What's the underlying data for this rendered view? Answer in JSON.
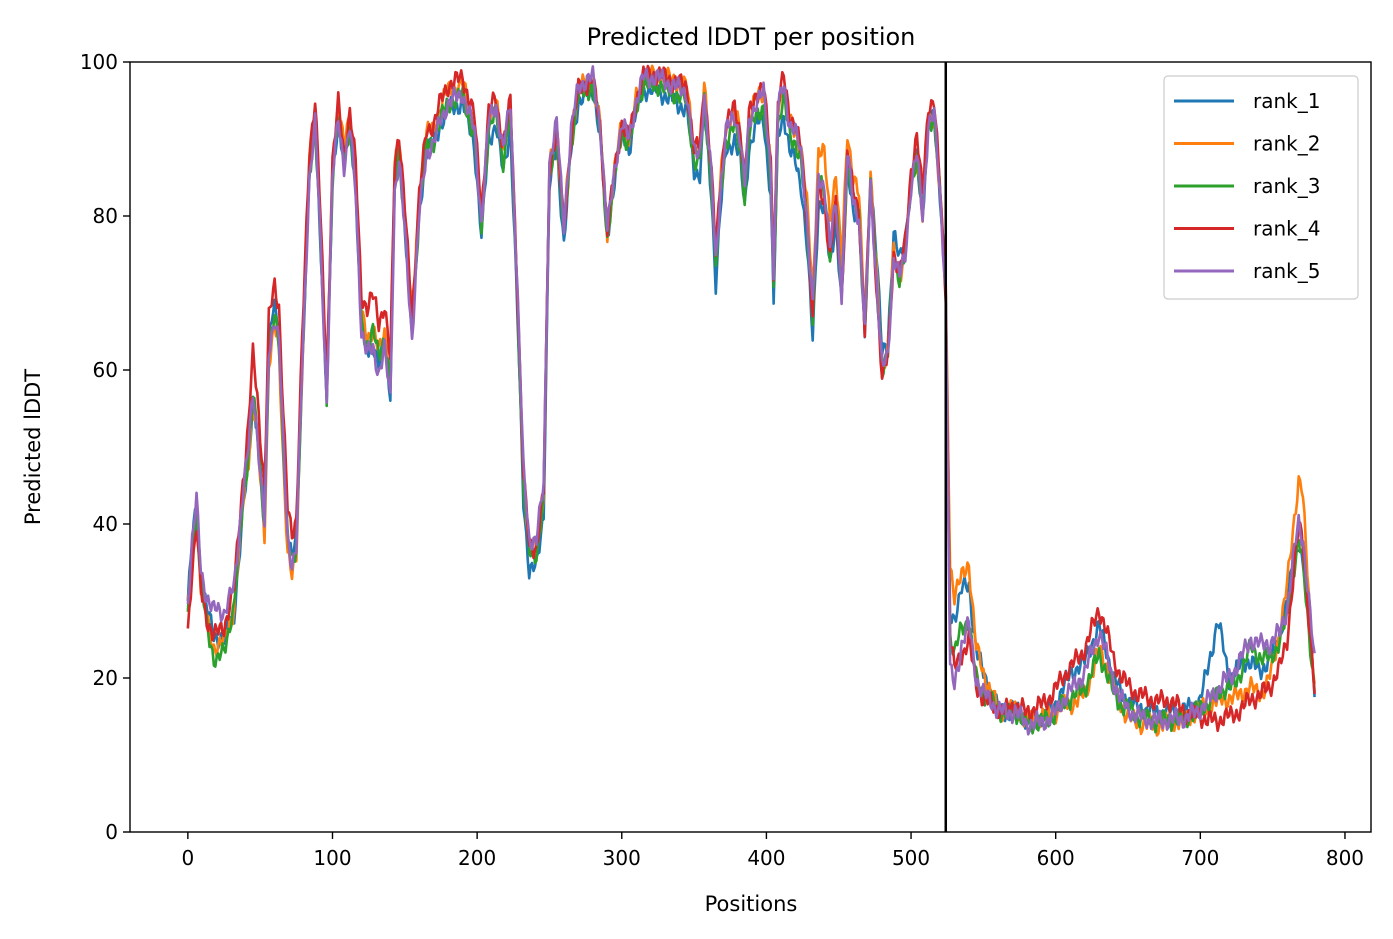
{
  "chart_data": {
    "type": "line",
    "title": "Predicted lDDT per position",
    "xlabel": "Positions",
    "ylabel": "Predicted lDDT",
    "xlim": [
      -40,
      818
    ],
    "ylim": [
      0,
      100
    ],
    "xticks": [
      0,
      100,
      200,
      300,
      400,
      500,
      600,
      700,
      800
    ],
    "yticks": [
      0,
      20,
      40,
      60,
      80,
      100
    ],
    "grid": false,
    "legend_position": "top-right",
    "vline": {
      "x": 524,
      "color": "#000000"
    },
    "series": [
      {
        "name": "rank_1",
        "color": "#1f77b4",
        "offsets": [
          [
            0,
            0
          ],
          [
            37,
            -3
          ],
          [
            58,
            3
          ],
          [
            60,
            1
          ],
          [
            97,
            0
          ],
          [
            150,
            -1
          ],
          [
            236,
            -4
          ],
          [
            290,
            -1
          ],
          [
            430,
            -4
          ],
          [
            470,
            0
          ],
          [
            476,
            3
          ],
          [
            486,
            2
          ],
          [
            495,
            3
          ],
          [
            500,
            0
          ],
          [
            524,
            0
          ],
          [
            530,
            6
          ],
          [
            540,
            5
          ],
          [
            560,
            0
          ],
          [
            600,
            0
          ],
          [
            610,
            1.5
          ],
          [
            625,
            1
          ],
          [
            640,
            0
          ],
          [
            700,
            1
          ],
          [
            712,
            10
          ],
          [
            720,
            2
          ],
          [
            730,
            3
          ],
          [
            740,
            1
          ],
          [
            760,
            2
          ],
          [
            770,
            -3
          ],
          [
            779,
            -3
          ]
        ]
      },
      {
        "name": "rank_2",
        "color": "#ff7f0e",
        "offsets": [
          [
            0,
            -1
          ],
          [
            18,
            -3
          ],
          [
            30,
            -2
          ],
          [
            50,
            -1
          ],
          [
            72,
            -2
          ],
          [
            85,
            2
          ],
          [
            200,
            0
          ],
          [
            236,
            -1
          ],
          [
            360,
            1
          ],
          [
            420,
            0
          ],
          [
            440,
            4
          ],
          [
            460,
            3
          ],
          [
            475,
            1
          ],
          [
            500,
            0
          ],
          [
            524,
            0
          ],
          [
            527,
            10
          ],
          [
            535,
            7
          ],
          [
            540,
            8
          ],
          [
            545,
            4
          ],
          [
            560,
            0
          ],
          [
            590,
            0
          ],
          [
            600,
            -1
          ],
          [
            615,
            -3
          ],
          [
            625,
            -3
          ],
          [
            640,
            -1
          ],
          [
            650,
            -2
          ],
          [
            700,
            0
          ],
          [
            730,
            -1
          ],
          [
            745,
            -2
          ],
          [
            760,
            4
          ],
          [
            770,
            6
          ],
          [
            779,
            -3
          ]
        ]
      },
      {
        "name": "rank_3",
        "color": "#2ca02c",
        "offsets": [
          [
            0,
            -1
          ],
          [
            10,
            -2
          ],
          [
            20,
            -5
          ],
          [
            30,
            -2
          ],
          [
            50,
            0
          ],
          [
            97,
            0
          ],
          [
            120,
            0
          ],
          [
            130,
            1
          ],
          [
            150,
            -1
          ],
          [
            236,
            -2
          ],
          [
            290,
            -1
          ],
          [
            365,
            -1
          ],
          [
            405,
            -2
          ],
          [
            430,
            -1
          ],
          [
            470,
            0
          ],
          [
            500,
            0
          ],
          [
            524,
            0
          ],
          [
            530,
            1
          ],
          [
            545,
            0
          ],
          [
            560,
            0
          ],
          [
            600,
            -1
          ],
          [
            630,
            -3
          ],
          [
            650,
            -1
          ],
          [
            700,
            0
          ],
          [
            725,
            1
          ],
          [
            735,
            4
          ],
          [
            745,
            2
          ],
          [
            760,
            0
          ],
          [
            770,
            -3
          ],
          [
            779,
            -4
          ]
        ]
      },
      {
        "name": "rank_4",
        "color": "#d62728",
        "offsets": [
          [
            0,
            -4
          ],
          [
            15,
            -2
          ],
          [
            40,
            2
          ],
          [
            45,
            5
          ],
          [
            95,
            3
          ],
          [
            100,
            2
          ],
          [
            110,
            1
          ],
          [
            120,
            4
          ],
          [
            130,
            6
          ],
          [
            140,
            3
          ],
          [
            150,
            1
          ],
          [
            200,
            1
          ],
          [
            240,
            -1
          ],
          [
            300,
            0
          ],
          [
            360,
            1
          ],
          [
            420,
            1
          ],
          [
            440,
            -2
          ],
          [
            460,
            1
          ],
          [
            480,
            -1
          ],
          [
            500,
            2
          ],
          [
            510,
            3
          ],
          [
            524,
            0
          ],
          [
            528,
            0
          ],
          [
            535,
            -3
          ],
          [
            545,
            -1
          ],
          [
            560,
            0
          ],
          [
            600,
            2
          ],
          [
            630,
            3
          ],
          [
            650,
            2
          ],
          [
            680,
            2
          ],
          [
            700,
            -1
          ],
          [
            712,
            -3
          ],
          [
            730,
            -3
          ],
          [
            745,
            -2
          ],
          [
            760,
            -3
          ],
          [
            770,
            0
          ],
          [
            779,
            -4
          ]
        ]
      },
      {
        "name": "rank_5",
        "color": "#9467bd",
        "offsets": [
          [
            0,
            0
          ],
          [
            10,
            0
          ],
          [
            20,
            2
          ],
          [
            40,
            0
          ],
          [
            97,
            0
          ],
          [
            150,
            -2
          ],
          [
            236,
            0
          ],
          [
            524,
            0
          ],
          [
            527,
            -4
          ],
          [
            540,
            0
          ],
          [
            560,
            0
          ],
          [
            600,
            -1
          ],
          [
            630,
            0
          ],
          [
            650,
            -1
          ],
          [
            700,
            0
          ],
          [
            710,
            1
          ],
          [
            720,
            2
          ],
          [
            735,
            5
          ],
          [
            745,
            4
          ],
          [
            760,
            1
          ],
          [
            770,
            0
          ],
          [
            779,
            0
          ]
        ]
      }
    ],
    "base_profile": [
      [
        0,
        30
      ],
      [
        3,
        38
      ],
      [
        6,
        43
      ],
      [
        9,
        34
      ],
      [
        13,
        30
      ],
      [
        18,
        27
      ],
      [
        25,
        27
      ],
      [
        32,
        31
      ],
      [
        38,
        44
      ],
      [
        42,
        50
      ],
      [
        45,
        57
      ],
      [
        48,
        52
      ],
      [
        50,
        47
      ],
      [
        53,
        40
      ],
      [
        56,
        62
      ],
      [
        60,
        67
      ],
      [
        63,
        64
      ],
      [
        66,
        50
      ],
      [
        69,
        38
      ],
      [
        72,
        35
      ],
      [
        75,
        37
      ],
      [
        79,
        60
      ],
      [
        84,
        85
      ],
      [
        88,
        92
      ],
      [
        91,
        80
      ],
      [
        96,
        56
      ],
      [
        100,
        85
      ],
      [
        104,
        93
      ],
      [
        108,
        87
      ],
      [
        112,
        92
      ],
      [
        116,
        84
      ],
      [
        120,
        66
      ],
      [
        124,
        63
      ],
      [
        128,
        64
      ],
      [
        132,
        61
      ],
      [
        136,
        64
      ],
      [
        140,
        58
      ],
      [
        143,
        85
      ],
      [
        146,
        89
      ],
      [
        150,
        80
      ],
      [
        155,
        66
      ],
      [
        160,
        82
      ],
      [
        165,
        90
      ],
      [
        170,
        91
      ],
      [
        175,
        94
      ],
      [
        180,
        96
      ],
      [
        190,
        97
      ],
      [
        198,
        92
      ],
      [
        203,
        80
      ],
      [
        208,
        93
      ],
      [
        213,
        95
      ],
      [
        218,
        89
      ],
      [
        223,
        95
      ],
      [
        228,
        70
      ],
      [
        232,
        47
      ],
      [
        236,
        38
      ],
      [
        241,
        38
      ],
      [
        246,
        45
      ],
      [
        250,
        87
      ],
      [
        255,
        92
      ],
      [
        260,
        79
      ],
      [
        265,
        91
      ],
      [
        270,
        97
      ],
      [
        280,
        98
      ],
      [
        285,
        92
      ],
      [
        290,
        78
      ],
      [
        295,
        86
      ],
      [
        300,
        92
      ],
      [
        305,
        90
      ],
      [
        310,
        95
      ],
      [
        315,
        98
      ],
      [
        325,
        98
      ],
      [
        335,
        97
      ],
      [
        345,
        96
      ],
      [
        350,
        88
      ],
      [
        354,
        88
      ],
      [
        357,
        96
      ],
      [
        362,
        85
      ],
      [
        365,
        74
      ],
      [
        368,
        83
      ],
      [
        372,
        91
      ],
      [
        378,
        93
      ],
      [
        382,
        90
      ],
      [
        385,
        84
      ],
      [
        388,
        92
      ],
      [
        393,
        95
      ],
      [
        398,
        96
      ],
      [
        403,
        86
      ],
      [
        405,
        72
      ],
      [
        408,
        94
      ],
      [
        412,
        97
      ],
      [
        416,
        92
      ],
      [
        420,
        91
      ],
      [
        424,
        88
      ],
      [
        428,
        80
      ],
      [
        432,
        68
      ],
      [
        436,
        85
      ],
      [
        440,
        84
      ],
      [
        444,
        76
      ],
      [
        448,
        82
      ],
      [
        452,
        70
      ],
      [
        456,
        88
      ],
      [
        460,
        82
      ],
      [
        464,
        80
      ],
      [
        468,
        65
      ],
      [
        472,
        84
      ],
      [
        476,
        72
      ],
      [
        480,
        60
      ],
      [
        484,
        62
      ],
      [
        488,
        75
      ],
      [
        492,
        72
      ],
      [
        496,
        75
      ],
      [
        500,
        84
      ],
      [
        504,
        88
      ],
      [
        508,
        80
      ],
      [
        512,
        92
      ],
      [
        516,
        93
      ],
      [
        520,
        83
      ],
      [
        524,
        70
      ],
      [
        527,
        25
      ],
      [
        530,
        22
      ],
      [
        535,
        26
      ],
      [
        540,
        27
      ],
      [
        545,
        20
      ],
      [
        550,
        18
      ],
      [
        555,
        17
      ],
      [
        560,
        16
      ],
      [
        566,
        15.5
      ],
      [
        572,
        16
      ],
      [
        580,
        14.5
      ],
      [
        590,
        15
      ],
      [
        598,
        16
      ],
      [
        605,
        18
      ],
      [
        610,
        19
      ],
      [
        615,
        20
      ],
      [
        620,
        21
      ],
      [
        626,
        24
      ],
      [
        630,
        26
      ],
      [
        634,
        24
      ],
      [
        640,
        20
      ],
      [
        645,
        18
      ],
      [
        650,
        17
      ],
      [
        656,
        16
      ],
      [
        662,
        15.5
      ],
      [
        670,
        15
      ],
      [
        680,
        15
      ],
      [
        690,
        15
      ],
      [
        700,
        16
      ],
      [
        710,
        17
      ],
      [
        716,
        18
      ],
      [
        722,
        18
      ],
      [
        728,
        19
      ],
      [
        735,
        20
      ],
      [
        742,
        20
      ],
      [
        748,
        21
      ],
      [
        755,
        24
      ],
      [
        760,
        28
      ],
      [
        765,
        36
      ],
      [
        768,
        40
      ],
      [
        771,
        38
      ],
      [
        775,
        30
      ],
      [
        779,
        22
      ]
    ]
  }
}
